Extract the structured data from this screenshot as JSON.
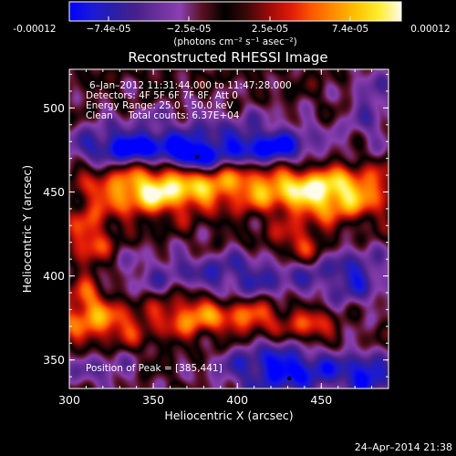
{
  "chart_data": {
    "type": "heatmap",
    "title": "Reconstructed RHESSI Image",
    "colorbar": {
      "tick_labels": [
        "-0.00012",
        "−7.4e-05",
        "−2.5e-05",
        "2.5e-05",
        "7.4e-05",
        "0.00012"
      ],
      "units_label": "(photons cm⁻² s⁻¹ asec⁻²)",
      "range": [
        -0.00012,
        0.00012
      ],
      "colors": [
        "#0000ff",
        "#1a1ad8",
        "#2a1fa8",
        "#47208a",
        "#6a2f9a",
        "#8a3fb0",
        "#5a1020",
        "#000000",
        "#3a0808",
        "#9a0a08",
        "#e01a08",
        "#ff5a00",
        "#ff9000",
        "#ffc400",
        "#ffee30",
        "#fffbe8"
      ]
    },
    "xlabel": "Heliocentric X (arcsec)",
    "ylabel": "Heliocentric Y (arcsec)",
    "x_ticks": [
      "300",
      "350",
      "400",
      "450"
    ],
    "y_ticks": [
      "350",
      "400",
      "450",
      "500"
    ],
    "xlim": [
      300,
      490
    ],
    "ylim": [
      333,
      523
    ],
    "grid": false,
    "annotations": {
      "time": "6–Jan–2012 11:31:44.000 to 11:47:28.000",
      "detectors": "Detectors: 4F 5F 6F 7F 8F, Att 0",
      "energy": "Energy Range: 25.0 – 50.0 keV",
      "clean": "Clean     Total counts: 6.37E+04",
      "peak": "Position of Peak = [385,441]"
    },
    "peak_markers": [
      {
        "x": 376,
        "y": 471
      },
      {
        "x": 431,
        "y": 339
      }
    ],
    "value_fields": [
      {
        "x": 410,
        "y": 455,
        "sx": 60,
        "sy": 10,
        "v": 9e-05
      },
      {
        "x": 348,
        "y": 450,
        "sx": 22,
        "sy": 10,
        "v": 8.5e-05
      },
      {
        "x": 455,
        "y": 446,
        "sx": 22,
        "sy": 10,
        "v": 8e-05
      },
      {
        "x": 312,
        "y": 420,
        "sx": 9,
        "sy": 14,
        "v": 7e-05
      },
      {
        "x": 436,
        "y": 418,
        "sx": 12,
        "sy": 8,
        "v": 6.5e-05
      },
      {
        "x": 318,
        "y": 372,
        "sx": 20,
        "sy": 10,
        "v": 8e-05
      },
      {
        "x": 372,
        "y": 378,
        "sx": 14,
        "sy": 10,
        "v": 8e-05
      },
      {
        "x": 408,
        "y": 375,
        "sx": 16,
        "sy": 8,
        "v": 7.5e-05
      },
      {
        "x": 445,
        "y": 368,
        "sx": 10,
        "sy": 9,
        "v": 7e-05
      },
      {
        "x": 310,
        "y": 388,
        "sx": 7,
        "sy": 7,
        "v": 6e-05
      },
      {
        "x": 400,
        "y": 400,
        "sx": 55,
        "sy": 11,
        "v": -7e-05
      },
      {
        "x": 375,
        "y": 480,
        "sx": 55,
        "sy": 14,
        "v": -6.5e-05
      },
      {
        "x": 375,
        "y": 471,
        "sx": 10,
        "sy": 5,
        "v": -0.00011
      },
      {
        "x": 420,
        "y": 475,
        "sx": 18,
        "sy": 7,
        "v": -8e-05
      },
      {
        "x": 335,
        "y": 476,
        "sx": 20,
        "sy": 6,
        "v": -8e-05
      },
      {
        "x": 430,
        "y": 345,
        "sx": 28,
        "sy": 12,
        "v": -0.00011
      },
      {
        "x": 478,
        "y": 340,
        "sx": 10,
        "sy": 8,
        "v": -9e-05
      },
      {
        "x": 470,
        "y": 400,
        "sx": 12,
        "sy": 15,
        "v": -5e-05
      },
      {
        "x": 480,
        "y": 505,
        "sx": 10,
        "sy": 18,
        "v": -5e-05
      },
      {
        "x": 318,
        "y": 345,
        "sx": 16,
        "sy": 10,
        "v": -5e-05
      }
    ]
  },
  "footer": {
    "date": "24–Apr–2014 21:38"
  }
}
